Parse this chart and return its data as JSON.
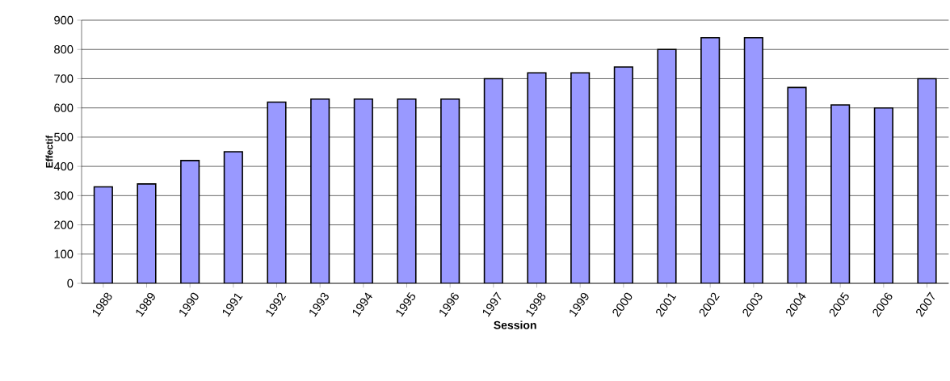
{
  "chart_data": {
    "type": "bar",
    "xlabel": "Session",
    "ylabel": "Effectif",
    "categories": [
      "1988",
      "1989",
      "1990",
      "1991",
      "1992",
      "1993",
      "1994",
      "1995",
      "1996",
      "1997",
      "1998",
      "1999",
      "2000",
      "2001",
      "2002",
      "2003",
      "2004",
      "2005",
      "2006",
      "2007"
    ],
    "values": [
      330,
      340,
      420,
      450,
      620,
      630,
      630,
      630,
      630,
      700,
      720,
      720,
      740,
      800,
      840,
      840,
      670,
      610,
      600,
      700
    ],
    "color": "#9999ff",
    "ylim": [
      0,
      900
    ],
    "yticks": [
      0,
      100,
      200,
      300,
      400,
      500,
      600,
      700,
      800,
      900
    ],
    "grid": "y"
  }
}
